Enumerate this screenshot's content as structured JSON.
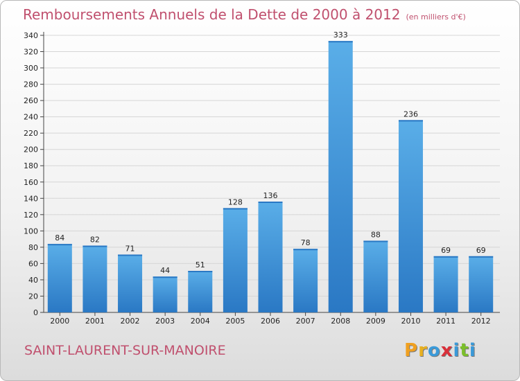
{
  "header": {
    "title": "Remboursements Annuels de la Dette de 2000 à 2012",
    "subtitle": "(en milliers d'€)"
  },
  "footer": {
    "city": "SAINT-LAURENT-SUR-MANOIRE",
    "logo": {
      "text": "Proxiti",
      "letters": [
        {
          "ch": "P",
          "color": "#f0a020"
        },
        {
          "ch": "r",
          "color": "#e8b020"
        },
        {
          "ch": "o",
          "color": "#3a9ad9"
        },
        {
          "ch": "x",
          "color": "#d9303a"
        },
        {
          "ch": "i",
          "color": "#3a9ad9"
        },
        {
          "ch": "t",
          "color": "#7bbf2a"
        },
        {
          "ch": "i",
          "color": "#3a9ad9"
        }
      ]
    }
  },
  "chart_data": {
    "type": "bar",
    "title": "Remboursements Annuels de la Dette de 2000 à 2012",
    "subtitle": "(en milliers d'€)",
    "categories": [
      "2000",
      "2001",
      "2002",
      "2003",
      "2004",
      "2005",
      "2006",
      "2007",
      "2008",
      "2009",
      "2010",
      "2011",
      "2012"
    ],
    "values": [
      84,
      82,
      71,
      44,
      51,
      128,
      136,
      78,
      333,
      88,
      236,
      69,
      69
    ],
    "ylim": [
      0,
      340
    ],
    "yticks": [
      0,
      20,
      40,
      60,
      80,
      100,
      120,
      140,
      160,
      180,
      200,
      220,
      240,
      260,
      280,
      300,
      320,
      340
    ],
    "grid": true,
    "bar_color": "#3f8fd6",
    "bar_color_light": "#5aaee8",
    "bar_color_dark": "#2a78c4"
  }
}
